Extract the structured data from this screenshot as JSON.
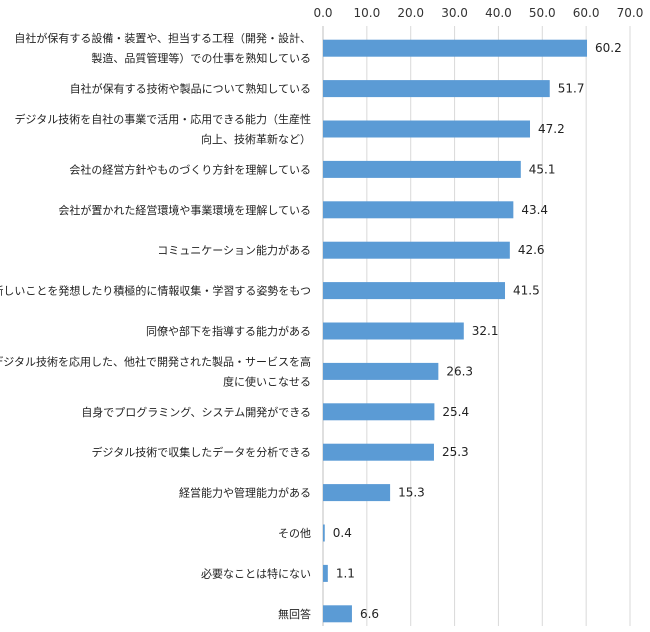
{
  "chart_data": {
    "type": "bar",
    "orientation": "horizontal",
    "xlim": [
      0,
      70
    ],
    "x_ticks": [
      "0.0",
      "10.0",
      "20.0",
      "30.0",
      "40.0",
      "50.0",
      "60.0",
      "70.0"
    ],
    "axis_position": "top",
    "grid": true,
    "bar_color": "#5b9bd5",
    "categories": [
      [
        "自社が保有する設備・装置や、担当する工程（開発・設計、",
        "製造、品質管理等）での仕事を熟知している"
      ],
      [
        "自社が保有する技術や製品について熟知している"
      ],
      [
        "デジタル技術を自社の事業で活用・応用できる能力（生産性",
        "向上、技術革新など）"
      ],
      [
        "会社の経営方針やものづくり方針を理解している"
      ],
      [
        "会社が置かれた経営環境や事業環境を理解している"
      ],
      [
        "コミュニケーション能力がある"
      ],
      [
        "新しいことを発想したり積極的に情報収集・学習する姿勢をもつ"
      ],
      [
        "同僚や部下を指導する能力がある"
      ],
      [
        "デジタル技術を応用した、他社で開発された製品・サービスを高",
        "度に使いこなせる"
      ],
      [
        "自身でプログラミング、システム開発ができる"
      ],
      [
        "デジタル技術で収集したデータを分析できる"
      ],
      [
        "経営能力や管理能力がある"
      ],
      [
        "その他"
      ],
      [
        "必要なことは特にない"
      ],
      [
        "無回答"
      ]
    ],
    "values": [
      60.2,
      51.7,
      47.2,
      45.1,
      43.4,
      42.6,
      41.5,
      32.1,
      26.3,
      25.4,
      25.3,
      15.3,
      0.4,
      1.1,
      6.6
    ],
    "value_labels": [
      "60.2",
      "51.7",
      "47.2",
      "45.1",
      "43.4",
      "42.6",
      "41.5",
      "32.1",
      "26.3",
      "25.4",
      "25.3",
      "15.3",
      "0.4",
      "1.1",
      "6.6"
    ]
  }
}
